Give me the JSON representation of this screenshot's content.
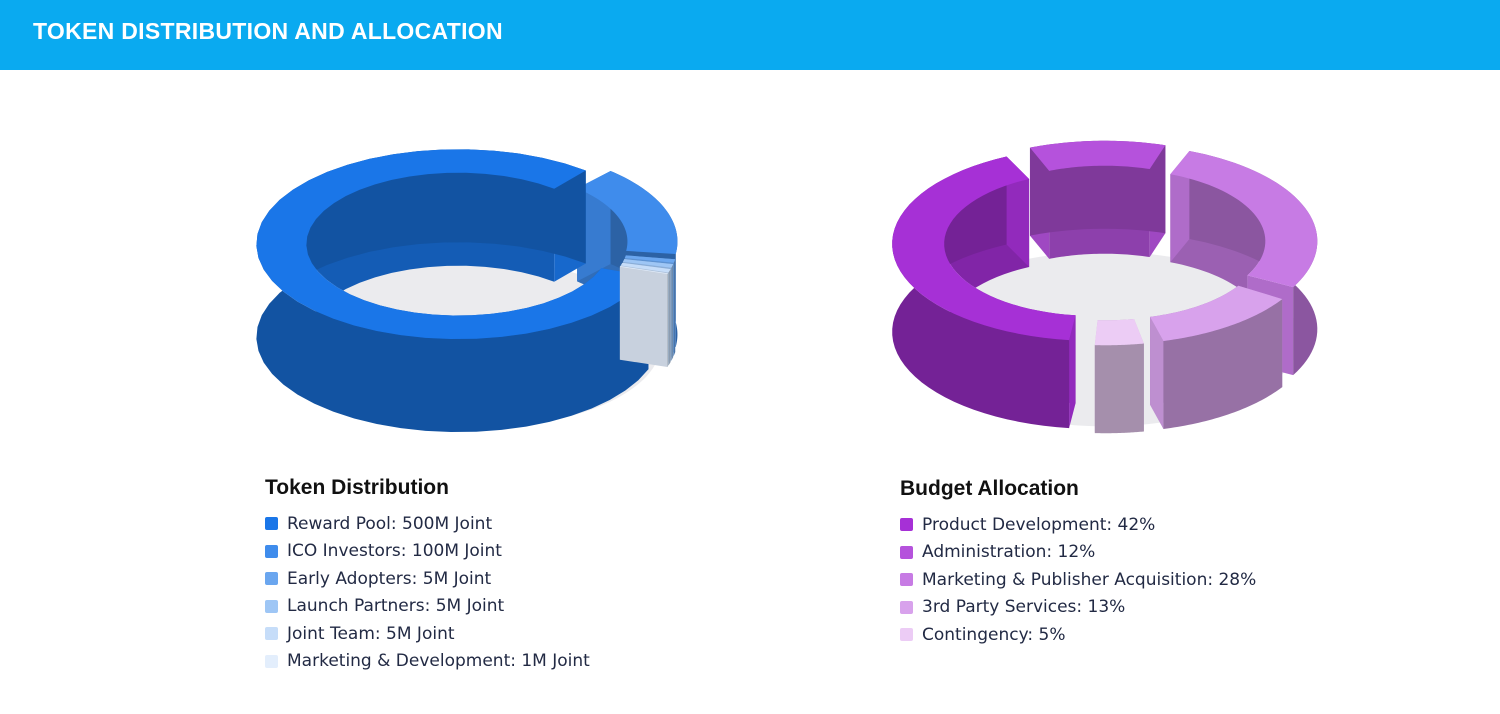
{
  "header": {
    "title": "TOKEN DISTRIBUTION AND ALLOCATION"
  },
  "chart_data": [
    {
      "type": "pie",
      "title": "Token Distribution",
      "series": [
        {
          "label": "Reward Pool: 500M Joint",
          "value": 500,
          "color": "#1a76e8"
        },
        {
          "label": "ICO Investors: 100M Joint",
          "value": 100,
          "color": "#3f8cec"
        },
        {
          "label": "Early Adopters: 5M Joint",
          "value": 5,
          "color": "#6aa6ef"
        },
        {
          "label": "Launch Partners: 5M Joint",
          "value": 5,
          "color": "#9ec6f5"
        },
        {
          "label": "Joint Team: 5M Joint",
          "value": 5,
          "color": "#c6ddf9"
        },
        {
          "label": "Marketing & Development: 1M Joint",
          "value": 1,
          "color": "#e3eefc"
        }
      ]
    },
    {
      "type": "pie",
      "title": "Budget Allocation",
      "series": [
        {
          "label": "Product Development: 42%",
          "value": 42,
          "color": "#a630d6"
        },
        {
          "label": "Administration: 12%",
          "value": 12,
          "color": "#b552dc"
        },
        {
          "label": "Marketing & Publisher Acquisition: 28%",
          "value": 28,
          "color": "#c77be4"
        },
        {
          "label": "3rd Party Services: 13%",
          "value": 13,
          "color": "#d8a2ec"
        },
        {
          "label": "Contingency: 5%",
          "value": 5,
          "color": "#ecccf5"
        }
      ]
    }
  ]
}
